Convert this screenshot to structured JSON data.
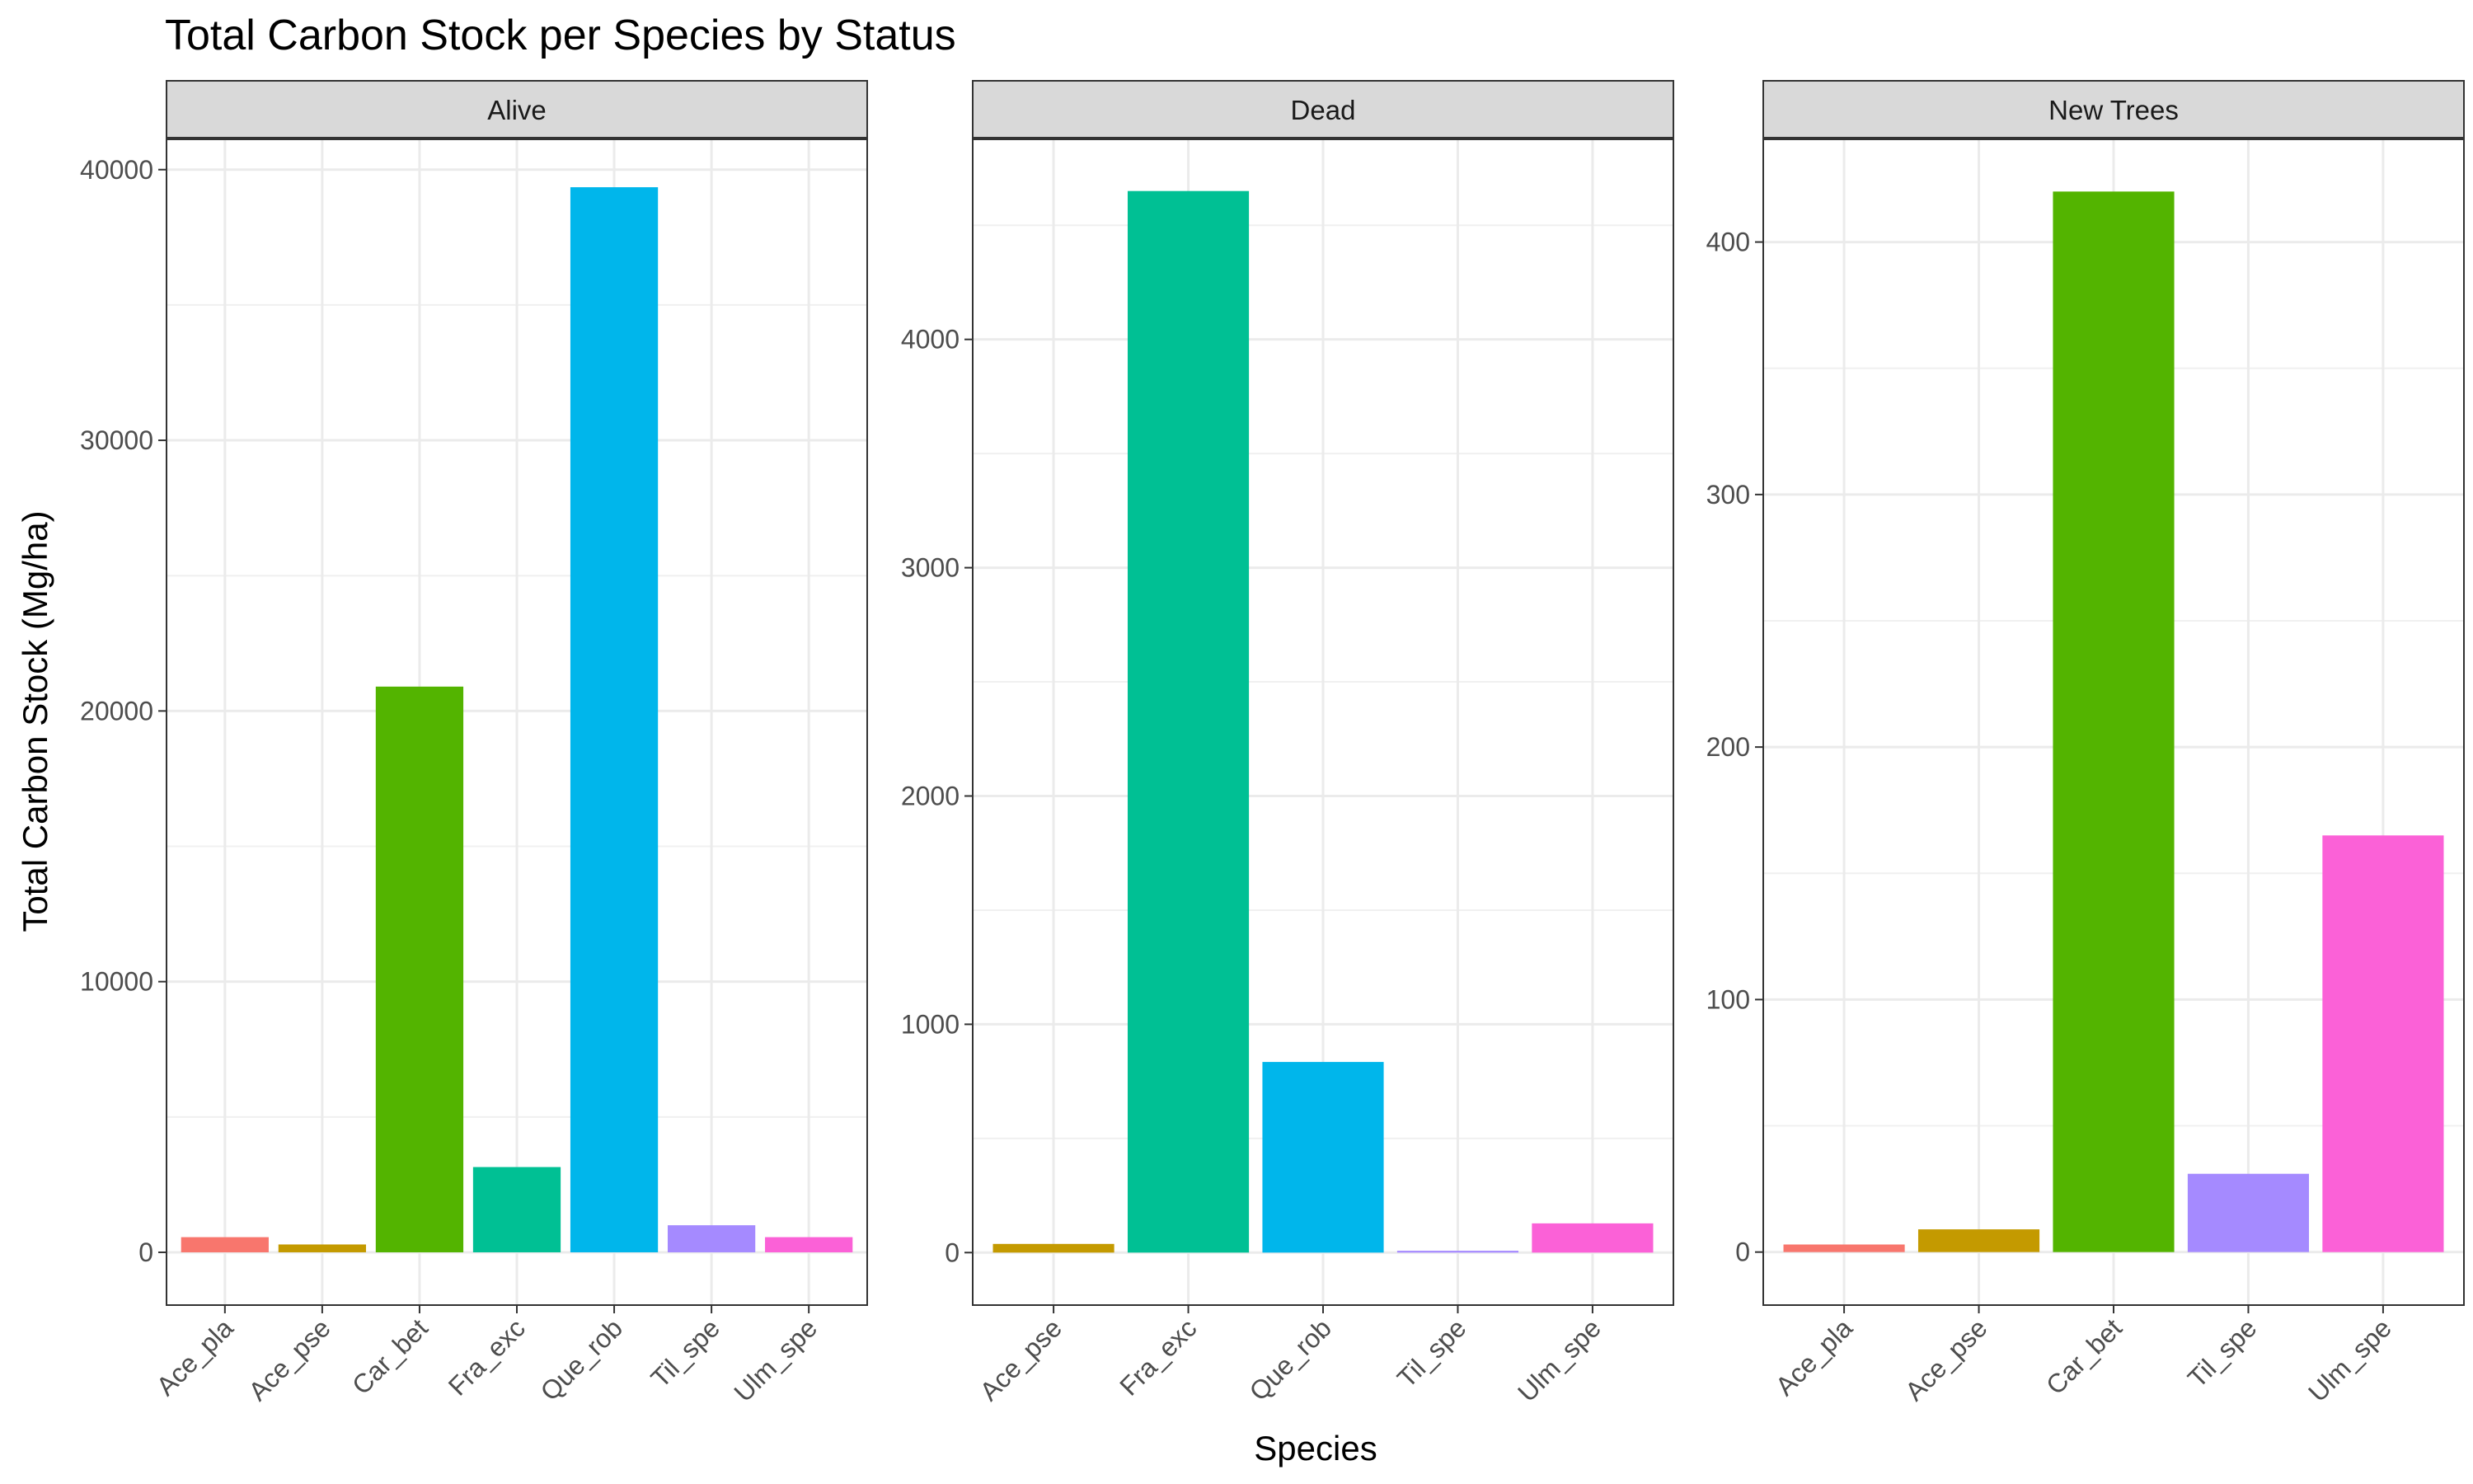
{
  "chart_data": {
    "type": "bar",
    "title": "Total Carbon Stock per Species by Status",
    "xlabel": "Species",
    "ylabel": "Total Carbon Stock (Mg/ha)",
    "grid": true,
    "legend": "none",
    "colors": {
      "Ace_pla": "#F8766D",
      "Ace_pse": "#C49A00",
      "Car_bet": "#53B400",
      "Fra_exc": "#00C094",
      "Que_rob": "#00B6EB",
      "Til_spe": "#A58AFF",
      "Ulm_spe": "#FB61D7"
    },
    "facets": [
      {
        "label": "Alive",
        "categories": [
          "Ace_pla",
          "Ace_pse",
          "Car_bet",
          "Fra_exc",
          "Que_rob",
          "Til_spe",
          "Ulm_spe"
        ],
        "values": [
          560,
          290,
          20900,
          3150,
          39350,
          1000,
          560
        ],
        "ylim": [
          -1950,
          41150
        ],
        "yticks": [
          0,
          10000,
          20000,
          30000,
          40000
        ]
      },
      {
        "label": "Dead",
        "categories": [
          "Ace_pse",
          "Fra_exc",
          "Que_rob",
          "Til_spe",
          "Ulm_spe"
        ],
        "values": [
          38,
          4650,
          835,
          8,
          128
        ],
        "ylim": [
          -230,
          4880
        ],
        "yticks": [
          0,
          1000,
          2000,
          3000,
          4000
        ]
      },
      {
        "label": "New Trees",
        "categories": [
          "Ace_pla",
          "Ace_pse",
          "Car_bet",
          "Til_spe",
          "Ulm_spe"
        ],
        "values": [
          3,
          9,
          420,
          31,
          165
        ],
        "ylim": [
          -21,
          441
        ],
        "yticks": [
          0,
          100,
          200,
          300,
          400
        ]
      }
    ]
  }
}
